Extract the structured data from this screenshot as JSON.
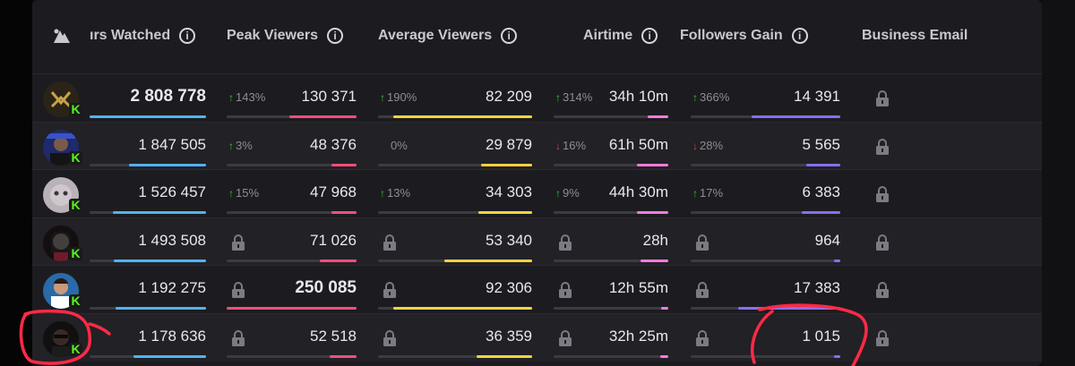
{
  "header": {
    "hours_watched": "ırs Watched",
    "peak_viewers": "Peak Viewers",
    "average_viewers": "Average Viewers",
    "airtime": "Airtime",
    "followers_gain": "Followers Gain",
    "business_email": "Business Email",
    "info_glyph": "i"
  },
  "colors": {
    "hours": "#4fb3ff",
    "peak": "#ff4d7a",
    "avg": "#ffd23f",
    "airtime": "#ff7ad9",
    "followers": "#8b6cff",
    "annotation": "#ff2a45"
  },
  "badge": "K",
  "rows": [
    {
      "hours": "2 808 778",
      "hours_bold": true,
      "hours_frac": 1.0,
      "peak_delta": "143%",
      "peak_dir": "up",
      "peak": "130 371",
      "peak_frac": 0.52,
      "avg_delta": "190%",
      "avg_dir": "up",
      "avg": "82 209",
      "avg_frac": 0.9,
      "air_delta": "314%",
      "air_dir": "up",
      "air": "34h 10m",
      "air_frac": 0.18,
      "fol_delta": "366%",
      "fol_dir": "up",
      "fol": "14 391",
      "fol_frac": 0.59
    },
    {
      "hours": "1 847 505",
      "hours_frac": 0.66,
      "peak_delta": "3%",
      "peak_dir": "up",
      "peak": "48 376",
      "peak_frac": 0.19,
      "avg_delta": "0%",
      "avg_dir": "none",
      "avg": "29 879",
      "avg_frac": 0.33,
      "air_delta": "16%",
      "air_dir": "down",
      "air": "61h 50m",
      "air_frac": 0.27,
      "fol_delta": "28%",
      "fol_dir": "down",
      "fol": "5 565",
      "fol_frac": 0.23
    },
    {
      "hours": "1 526 457",
      "hours_frac": 0.8,
      "peak_delta": "15%",
      "peak_dir": "up",
      "peak": "47 968",
      "peak_frac": 0.19,
      "avg_delta": "13%",
      "avg_dir": "up",
      "avg": "34 303",
      "avg_frac": 0.35,
      "air_delta": "9%",
      "air_dir": "up",
      "air": "44h 30m",
      "air_frac": 0.27,
      "fol_delta": "17%",
      "fol_dir": "up",
      "fol": "6 383",
      "fol_frac": 0.26
    },
    {
      "hours": "1 493 508",
      "hours_frac": 0.79,
      "peak_locked": true,
      "peak": "71 026",
      "peak_frac": 0.28,
      "avg_locked": true,
      "avg": "53 340",
      "avg_frac": 0.57,
      "air_locked": true,
      "air": "28h",
      "air_frac": 0.24,
      "fol_locked": true,
      "fol": "964",
      "fol_frac": 0.04
    },
    {
      "hours": "1 192 275",
      "hours_frac": 0.78,
      "peak_locked": true,
      "peak": "250 085",
      "peak_bold": true,
      "peak_frac": 1.0,
      "avg_locked": true,
      "avg": "92 306",
      "avg_frac": 0.9,
      "air_locked": true,
      "air": "12h 55m",
      "air_frac": 0.06,
      "fol_locked": true,
      "fol": "17 383",
      "fol_frac": 0.68
    },
    {
      "hours": "1 178 636",
      "hours_frac": 0.62,
      "peak_locked": true,
      "peak": "52 518",
      "peak_frac": 0.21,
      "avg_locked": true,
      "avg": "36 359",
      "avg_frac": 0.36,
      "air_locked": true,
      "air": "32h 25m",
      "air_frac": 0.07,
      "fol_locked": true,
      "fol": "1 015",
      "fol_frac": 0.04
    }
  ]
}
